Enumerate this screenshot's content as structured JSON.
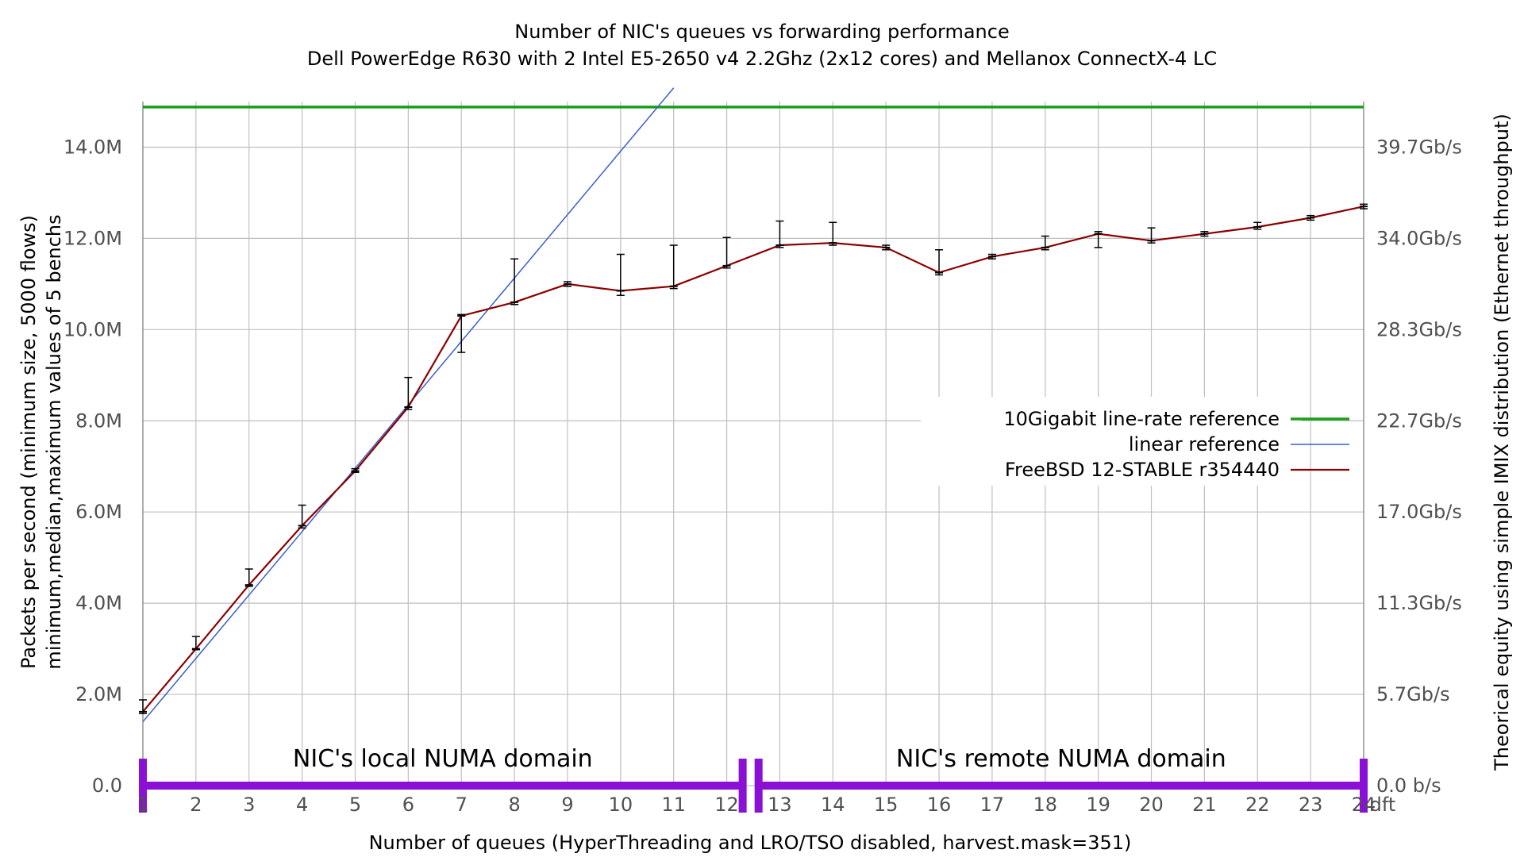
{
  "chart_data": {
    "type": "line",
    "title": "Number of NIC's queues vs forwarding performance",
    "subtitle": "Dell PowerEdge R630 with 2 Intel E5-2650 v4 2.2Ghz (2x12 cores) and Mellanox ConnectX-4 LC",
    "xlabel": "Number of queues (HyperThreading and LRO/TSO disabled, harvest.mask=351)",
    "ylabel": "Packets per second (minimum size, 5000 flows)",
    "ylabel2": "minimum,median,maximum values of 5 benchs",
    "y2label": "Theorical equity using simple IMIX distribution (Ethernet throughput)",
    "xlim": [
      1,
      24
    ],
    "ylim": [
      0,
      15000000
    ],
    "grid": true,
    "legend_position": "center-right",
    "x_ticks": [
      {
        "value": 1,
        "label": "1"
      },
      {
        "value": 2,
        "label": "2"
      },
      {
        "value": 3,
        "label": "3"
      },
      {
        "value": 4,
        "label": "4"
      },
      {
        "value": 5,
        "label": "5"
      },
      {
        "value": 6,
        "label": "6"
      },
      {
        "value": 7,
        "label": "7"
      },
      {
        "value": 8,
        "label": "8"
      },
      {
        "value": 9,
        "label": "9"
      },
      {
        "value": 10,
        "label": "10"
      },
      {
        "value": 11,
        "label": "11"
      },
      {
        "value": 12,
        "label": "12"
      },
      {
        "value": 13,
        "label": "13"
      },
      {
        "value": 14,
        "label": "14"
      },
      {
        "value": 15,
        "label": "15"
      },
      {
        "value": 16,
        "label": "16"
      },
      {
        "value": 17,
        "label": "17"
      },
      {
        "value": 18,
        "label": "18"
      },
      {
        "value": 19,
        "label": "19"
      },
      {
        "value": 20,
        "label": "20"
      },
      {
        "value": 21,
        "label": "21"
      },
      {
        "value": 22,
        "label": "22"
      },
      {
        "value": 23,
        "label": "23"
      },
      {
        "value": 24,
        "label": "24"
      }
    ],
    "x_extra_label": "dft",
    "y_ticks": [
      {
        "value": 0,
        "label": "0.0"
      },
      {
        "value": 2000000,
        "label": "2.0M"
      },
      {
        "value": 4000000,
        "label": "4.0M"
      },
      {
        "value": 6000000,
        "label": "6.0M"
      },
      {
        "value": 8000000,
        "label": "8.0M"
      },
      {
        "value": 10000000,
        "label": "10.0M"
      },
      {
        "value": 12000000,
        "label": "12.0M"
      },
      {
        "value": 14000000,
        "label": "14.0M"
      }
    ],
    "y2_ticks": [
      {
        "value": 0,
        "label": "0.0 b/s"
      },
      {
        "value": 2000000,
        "label": "5.7Gb/s"
      },
      {
        "value": 4000000,
        "label": "11.3Gb/s"
      },
      {
        "value": 6000000,
        "label": "17.0Gb/s"
      },
      {
        "value": 8000000,
        "label": "22.7Gb/s"
      },
      {
        "value": 10000000,
        "label": "28.3Gb/s"
      },
      {
        "value": 12000000,
        "label": "34.0Gb/s"
      },
      {
        "value": 14000000,
        "label": "39.7Gb/s"
      }
    ],
    "series": [
      {
        "name": "10Gigabit line-rate reference",
        "color": "#1a9e1a",
        "constant_y": 14880000
      },
      {
        "name": "linear reference",
        "color": "#3a5fcd",
        "line": {
          "x0": 1,
          "y0": 1400000,
          "slope": 1390000
        }
      },
      {
        "name": "FreeBSD 12-STABLE r354440",
        "color": "#8b0000",
        "x": [
          1,
          2,
          3,
          4,
          5,
          6,
          7,
          8,
          9,
          10,
          11,
          12,
          13,
          14,
          15,
          16,
          17,
          18,
          19,
          20,
          21,
          22,
          23,
          24
        ],
        "median": [
          1620000,
          3000000,
          4400000,
          5700000,
          6900000,
          8300000,
          10300000,
          10600000,
          11000000,
          10850000,
          10950000,
          11400000,
          11850000,
          11900000,
          11800000,
          11250000,
          11600000,
          11800000,
          12100000,
          11950000,
          12100000,
          12250000,
          12450000,
          12700000
        ],
        "min": [
          1580000,
          2980000,
          4370000,
          5650000,
          6870000,
          8250000,
          9500000,
          10550000,
          10950000,
          10750000,
          10900000,
          11350000,
          11800000,
          11850000,
          11750000,
          11200000,
          11550000,
          11750000,
          11800000,
          11900000,
          12050000,
          12200000,
          12400000,
          12650000
        ],
        "max": [
          1880000,
          3270000,
          4750000,
          6150000,
          6950000,
          8950000,
          10330000,
          11550000,
          11050000,
          11650000,
          11850000,
          12020000,
          12380000,
          12350000,
          11850000,
          11750000,
          11650000,
          12050000,
          12150000,
          12230000,
          12150000,
          12350000,
          12500000,
          12750000
        ]
      }
    ],
    "annotations": [
      {
        "text": "NIC's local NUMA domain",
        "from": 1,
        "to": 12.3
      },
      {
        "text": "NIC's remote NUMA domain",
        "from": 12.6,
        "to": 24
      }
    ],
    "annotation_color": "#8b10d6"
  }
}
